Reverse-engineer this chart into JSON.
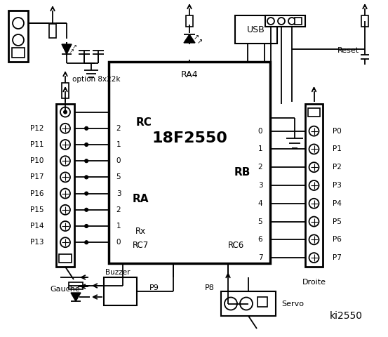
{
  "bg_color": "#ffffff",
  "line_color": "#000000",
  "title": "ki2550",
  "chip_label": "18F2550",
  "chip_ra4": "RA4",
  "chip_rc": "RC",
  "chip_ra": "RA",
  "chip_rb": "RB",
  "chip_rx": "Rx",
  "chip_rc7": "RC7",
  "chip_rc6": "RC6",
  "left_pins": [
    "P12",
    "P11",
    "P10",
    "P17",
    "P16",
    "P15",
    "P14",
    "P13"
  ],
  "left_rc_nums": [
    "2",
    "1",
    "0",
    "5",
    "3",
    "2",
    "1",
    "0"
  ],
  "right_pins": [
    "P0",
    "P1",
    "P2",
    "P3",
    "P4",
    "P5",
    "P6",
    "P7"
  ],
  "right_rb_nums": [
    "0",
    "1",
    "2",
    "3",
    "4",
    "5",
    "6",
    "7"
  ],
  "label_gauche": "Gauche",
  "label_droite": "Droite",
  "label_servo": "Servo",
  "label_usb": "USB",
  "label_reset": "Reset",
  "label_buzzer": "Buzzer",
  "label_p9": "P9",
  "label_p8": "P8",
  "label_option": "option 8x22k"
}
